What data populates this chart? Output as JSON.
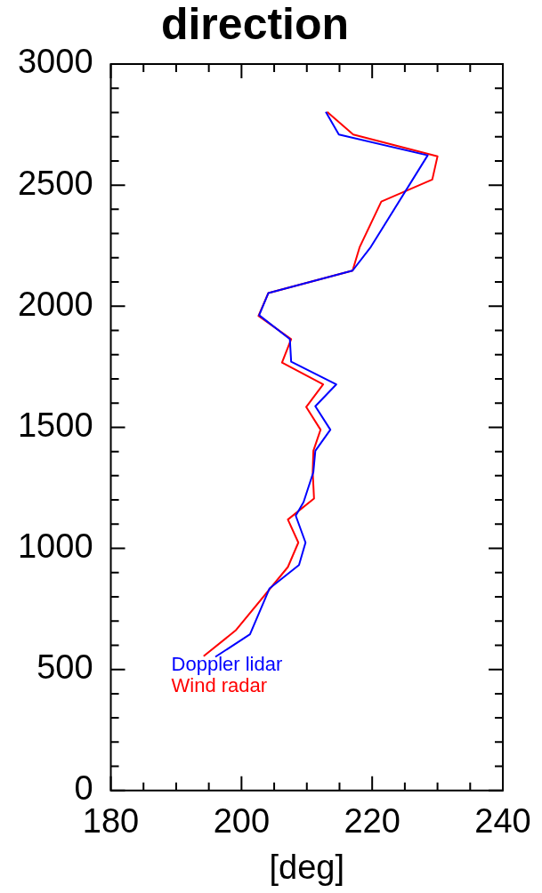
{
  "chart_data": {
    "type": "line",
    "title": "direction",
    "xlabel": "[deg]",
    "xlim": [
      180,
      240
    ],
    "xticks": [
      180,
      {
        "value": 185,
        "label": null
      },
      {
        "value": 190,
        "label": null
      },
      {
        "value": 195,
        "label": null
      },
      200,
      {
        "value": 205,
        "label": null
      },
      {
        "value": 210,
        "label": null
      },
      {
        "value": 215,
        "label": null
      },
      220,
      {
        "value": 225,
        "label": null
      },
      {
        "value": 230,
        "label": null
      },
      {
        "value": 235,
        "label": null
      },
      240
    ],
    "ylim": [
      0,
      3000
    ],
    "yticks": [
      0,
      {
        "value": 100,
        "label": null
      },
      {
        "value": 200,
        "label": null
      },
      {
        "value": 300,
        "label": null
      },
      {
        "value": 400,
        "label": null
      },
      500,
      {
        "value": 600,
        "label": null
      },
      {
        "value": 700,
        "label": null
      },
      {
        "value": 800,
        "label": null
      },
      {
        "value": 900,
        "label": null
      },
      1000,
      {
        "value": 1100,
        "label": null
      },
      {
        "value": 1200,
        "label": null
      },
      {
        "value": 1300,
        "label": null
      },
      {
        "value": 1400,
        "label": null
      },
      1500,
      {
        "value": 1600,
        "label": null
      },
      {
        "value": 1700,
        "label": null
      },
      {
        "value": 1800,
        "label": null
      },
      {
        "value": 1900,
        "label": null
      },
      2000,
      {
        "value": 2100,
        "label": null
      },
      {
        "value": 2200,
        "label": null
      },
      {
        "value": 2300,
        "label": null
      },
      {
        "value": 2400,
        "label": null
      },
      2500,
      {
        "value": 2600,
        "label": null
      },
      {
        "value": 2700,
        "label": null
      },
      {
        "value": 2800,
        "label": null
      },
      {
        "value": 2900,
        "label": null
      },
      3000
    ],
    "grid": false,
    "legend": "bottom left",
    "marker": "none",
    "line_style": "solid",
    "series": [
      {
        "name": "Doppler lidar",
        "color": "#0000ff",
        "x": [
          196,
          201.3,
          204.3,
          208.8,
          209.8,
          208.3,
          209.5,
          211,
          211.3,
          213.6,
          211.3,
          214.5,
          207.6,
          207.4,
          202.7,
          204.1,
          217,
          219.8,
          228.5,
          214.9,
          212.9
        ],
        "values": [
          552,
          645,
          835,
          931,
          1024,
          1135,
          1191,
          1315,
          1403,
          1490,
          1587,
          1677,
          1771,
          1864,
          1963,
          2054,
          2147,
          2245,
          2623,
          2709,
          2803
        ]
      },
      {
        "name": "Wind radar",
        "color": "#ff0000",
        "x": [
          194.2,
          199.1,
          207.1,
          208.7,
          207.1,
          211.1,
          210.9,
          211,
          212.1,
          209.9,
          212.5,
          206.2,
          207.6,
          202.6,
          204.1,
          217,
          218.1,
          221.4,
          229.2,
          230,
          217.1,
          213.1
        ],
        "values": [
          555,
          661,
          923,
          1024,
          1119,
          1206,
          1315,
          1403,
          1490,
          1584,
          1677,
          1767,
          1864,
          1960,
          2054,
          2147,
          2245,
          2432,
          2523,
          2619,
          2709,
          2803
        ]
      }
    ]
  }
}
